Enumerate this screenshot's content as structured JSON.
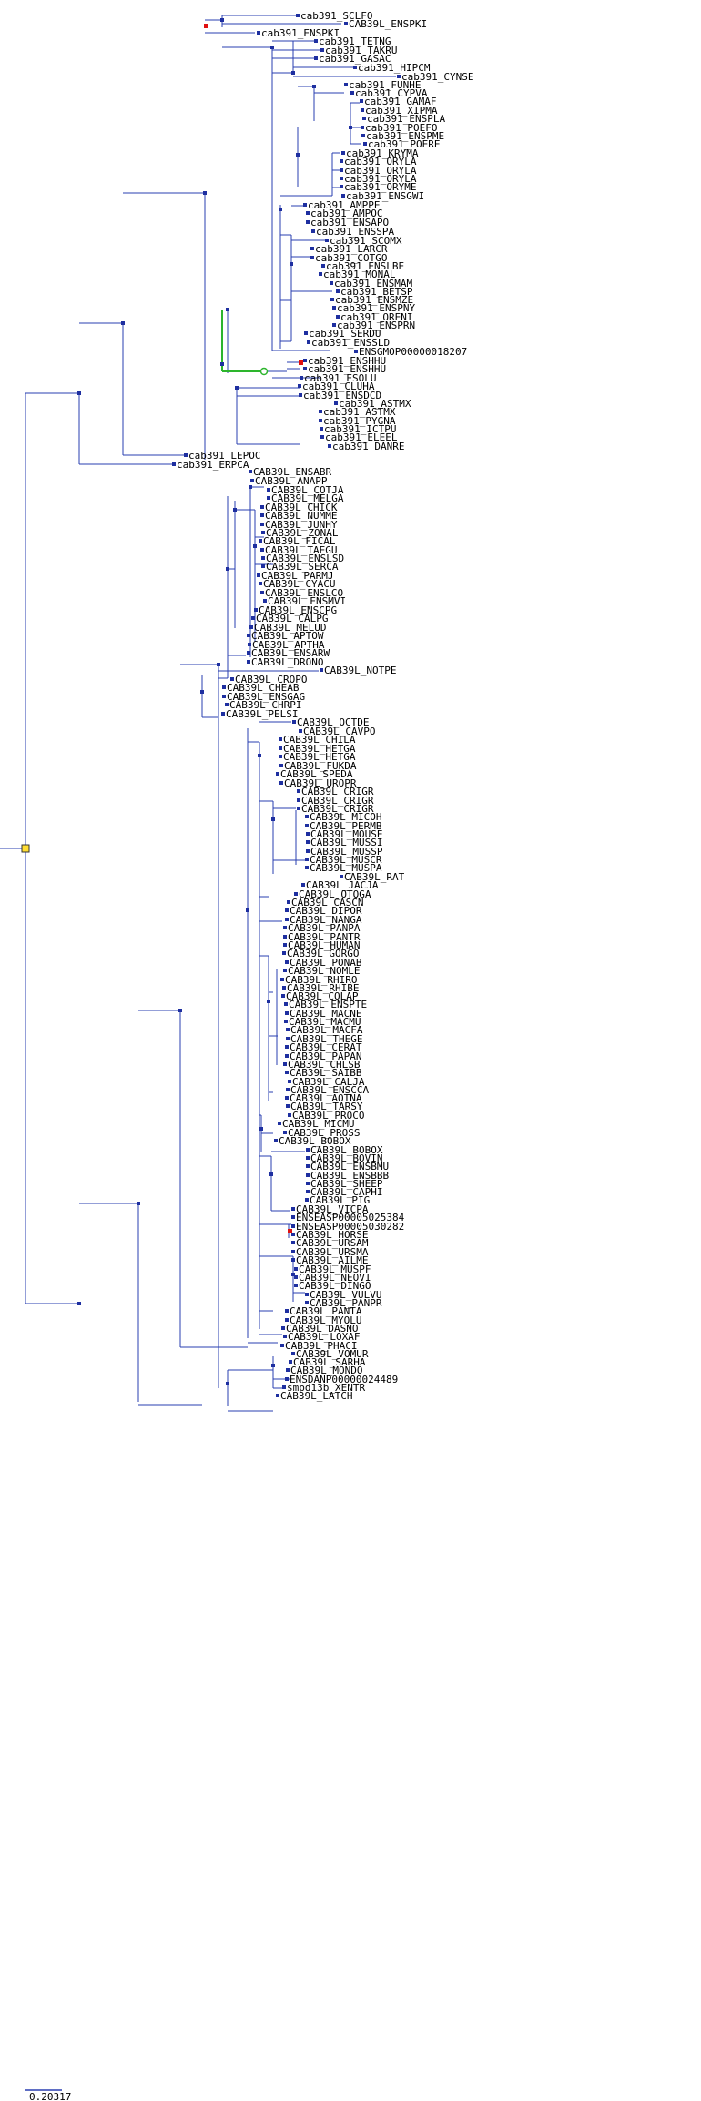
{
  "colors": {
    "branch": "#2a3fb0",
    "highlight": "#2db52d",
    "duplication": "#e01010",
    "node": "#1e2fa0"
  },
  "scale_label": "0.20317",
  "labels": [
    "cab391_SCLFO",
    "CAB39L_ENSPKI",
    "cab391_ENSPKI",
    "cab391_TETNG",
    "cab391_TAKRU",
    "cab391_GASAC",
    "cab391_HIPCM",
    "cab391_CYNSE",
    "cab391_FUNHE",
    "cab391_CYPVA",
    "cab391_GAMAF",
    "cab391_XIPMA",
    "cab391_ENSPLA",
    "cab391_POEFO",
    "cab391_ENSPME",
    "cab391_POERE",
    "cab391_KRYMA",
    "cab391_ORYLA",
    "cab391_ORYLA",
    "cab391_ORYLA",
    "cab391_ORYME",
    "cab391_ENSGWI",
    "cab391_AMPPE",
    "cab391_AMPOC",
    "cab391_ENSAPO",
    "cab391_ENSSPA",
    "cab391_SCOMX",
    "cab391_LARCR",
    "cab391_COTGO",
    "cab391_ENSLBE",
    "cab391_MONAL",
    "cab391_ENSMAM",
    "cab391_BETSP",
    "cab391_ENSMZE",
    "cab391_ENSPNY",
    "cab391_ORENI",
    "cab391_ENSPRN",
    "cab391_SERDU",
    "cab391_ENSSLD",
    "ENSGMOP00000018207",
    "cab391_ENSHHU",
    "cab391_ENSHHU",
    "cab391_ESOLU",
    "cab391_CLUHA",
    "cab391_ENSDCD",
    "cab391_ASTMX",
    "cab391_ASTMX",
    "cab391_PYGNA",
    "cab391_ICTPU",
    "cab391_ELEEL",
    "cab391_DANRE",
    "cab391_LEPOC",
    "cab391_ERPCA",
    "CAB39L_ENSABR",
    "CAB39L_ANAPP",
    "CAB39L_COTJA",
    "CAB39L_MELGA",
    "CAB39L_CHICK",
    "CAB39L_NUMME",
    "CAB39L_JUNHY",
    "CAB39L_ZONAL",
    "CAB39L_FICAL",
    "CAB39L_TAEGU",
    "CAB39L_ENSLSD",
    "CAB39L_SERCA",
    "CAB39L_PARMJ",
    "CAB39L_CYACU",
    "CAB39L_ENSLCO",
    "CAB39L_ENSMVI",
    "CAB39L_ENSCPG",
    "CAB39L_CALPG",
    "CAB39L_MELUD",
    "CAB39L_APTOW",
    "CAB39L_APTHA",
    "CAB39L_ENSARW",
    "CAB39L_DRONO",
    "CAB39L_NOTPE",
    "CAB39L_CROPO",
    "CAB39L_CHEAB",
    "CAB39L_ENSGAG",
    "CAB39L_CHRPI",
    "CAB39L_PELSI",
    "CAB39L_OCTDE",
    "CAB39L_CAVPO",
    "CAB39L_CHILA",
    "CAB39L_HETGA",
    "CAB39L_HETGA",
    "CAB39L_FUKDA",
    "CAB39L_SPEDA",
    "CAB39L_UROPR",
    "CAB39L_CRIGR",
    "CAB39L_CRIGR",
    "CAB39L_CRIGR",
    "CAB39L_MICOH",
    "CAB39L_PERMB",
    "CAB39L_MOUSE",
    "CAB39L_MUSSI",
    "CAB39L_MUSSP",
    "CAB39L_MUSCR",
    "CAB39L_MUSPA",
    "CAB39L_RAT",
    "CAB39L_JACJA",
    "CAB39L_OTOGA",
    "CAB39L_CASCN",
    "CAB39L_DIPOR",
    "CAB39L_NANGA",
    "CAB39L_PANPA",
    "CAB39L_PANTR",
    "CAB39L_HUMAN",
    "CAB39L_GORGO",
    "CAB39L_PONAB",
    "CAB39L_NOMLE",
    "CAB39L_RHIRO",
    "CAB39L_RHIBE",
    "CAB39L_COLAP",
    "CAB39L_ENSPTE",
    "CAB39L_MACNE",
    "CAB39L_MACMU",
    "CAB39L_MACFA",
    "CAB39L_THEGE",
    "CAB39L_CERAT",
    "CAB39L_PAPAN",
    "CAB39L_CHLSB",
    "CAB39L_SAIBB",
    "CAB39L_CALJA",
    "CAB39L_ENSCCA",
    "CAB39L_AOTNA",
    "CAB39L_TARSY",
    "CAB39L_PROCO",
    "CAB39L_MICMU",
    "CAB39L_PROSS",
    "CAB39L_BOBOX",
    "CAB39L_BOBOX",
    "CAB39L_BOVIN",
    "CAB39L_ENSBMU",
    "CAB39L_ENSBBB",
    "CAB39L_SHEEP",
    "CAB39L_CAPHI",
    "CAB39L_PIG",
    "CAB39L_VICPA",
    "ENSEASP00005025384",
    "ENSEASP00005030282",
    "CAB39L_HORSE",
    "CAB39L_URSAM",
    "CAB39L_URSMA",
    "CAB39L_AILME",
    "CAB39L_MUSPF",
    "CAB39L_NEOVI",
    "CAB39L_DINGO",
    "CAB39L_VULVU",
    "CAB39L_PANPR",
    "CAB39L_PANTA",
    "CAB39L_MYOLU",
    "CAB39L_DASNO",
    "CAB39L_LOXAF",
    "CAB39L_PHACI",
    "CAB39L_VOMUR",
    "CAB39L_SARHA",
    "CAB39L_MONDO",
    "ENSDANP00000024489",
    "smpd13b_XENTR",
    "CAB39L_LATCH"
  ]
}
